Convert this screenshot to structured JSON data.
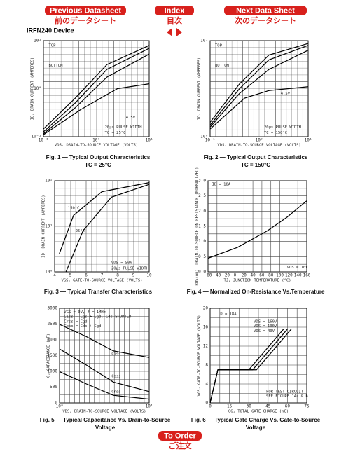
{
  "nav": {
    "prev": {
      "en": "Previous Datasheet",
      "ja": "前のデータシート"
    },
    "index": {
      "en": "Index",
      "ja": "目次"
    },
    "next": {
      "en": "Next Data Sheet",
      "ja": "次のデータシート"
    }
  },
  "device": "IRFN240 Device",
  "figures": [
    {
      "caption": [
        "Fig. 1 — Typical Output Characteristics",
        "TC = 25°C"
      ],
      "y_label": "ID, DRAIN CURRENT (AMPERES)",
      "x_label": "VDS, DRAIN-TO-SOURCE VOLTAGE (VOLTS)",
      "y_ticks": [
        "10¹",
        "10⁰",
        "10⁻¹"
      ],
      "x_ticks": [
        "10⁻¹",
        "10⁰",
        "10¹"
      ],
      "annotations": [
        "TOP",
        "BOTTOM",
        "4.5V",
        "20µs PULSE WIDTH",
        "TC = 25°C"
      ]
    },
    {
      "caption": [
        "Fig. 2 — Typical Output Characteristics",
        "TC = 150°C"
      ],
      "y_label": "ID, DRAIN CURRENT (AMPERES)",
      "x_label": "VDS, DRAIN-TO-SOURCE VOLTAGE (VOLTS)",
      "y_ticks": [
        "10¹",
        "10⁰"
      ],
      "x_ticks": [
        "10⁻¹",
        "10⁰",
        "10¹"
      ],
      "annotations": [
        "TOP",
        "BOTTOM",
        "4.5V",
        "20µs PULSE WIDTH",
        "TC = 150°C"
      ]
    },
    {
      "caption": [
        "Fig. 3 — Typical Transfer Characteristics"
      ],
      "y_label": "ID, DRAIN CURRENT (AMPERES)",
      "x_label": "VGS, GATE-TO-SOURCE VOLTAGE (VOLTS)",
      "y_ticks": [
        "10²",
        "10¹",
        "10⁰"
      ],
      "x_ticks": [
        4,
        5,
        6,
        7,
        8,
        9,
        10
      ],
      "annotations": [
        "150°C",
        "25°C",
        "VDS = 50V",
        "20µs PULSE WIDTH"
      ]
    },
    {
      "caption": [
        "Fig. 4 — Normalized On-Resistance Vs.Temperature"
      ],
      "y_label": "RDS(on), DRAIN-TO-SOURCE ON RESISTANCE (NORMALIZED)",
      "x_label": "TJ, JUNCTION TEMPERATURE (°C)",
      "y_ticks": [
        "3.0",
        "2.5",
        "2.0",
        "1.5",
        "1.0",
        "0.5",
        "0.0"
      ],
      "x_ticks": [
        -60,
        -40,
        -20,
        0,
        20,
        40,
        60,
        80,
        100,
        120,
        140,
        160
      ],
      "annotations": [
        "ID = 18A",
        "VGS = 10V"
      ]
    },
    {
      "caption": [
        "Fig. 5 — Typical Capacitance Vs. Drain-to-Source",
        "Voltage"
      ],
      "y_label": "C, CAPACITANCE (pF)",
      "x_label": "VDS, DRAIN-TO-SOURCE VOLTAGE (VOLTS)",
      "y_ticks": [
        3000,
        2500,
        2000,
        1500,
        1000,
        500,
        0
      ],
      "x_ticks": [
        "10⁰",
        "10¹"
      ],
      "annotations": [
        "VGS = 0V, f = 1MHz",
        "Ciss = Cgs + Cgd, Cds SHORTED",
        "Crss = Cgd",
        "Coss = Cds + Cgd",
        "Ciss",
        "Coss",
        "Crss"
      ]
    },
    {
      "caption": [
        "Fig. 6 — Typical Gate Charge Vs. Gate-to-Source",
        "Voltage"
      ],
      "y_label": "VGS, GATE-TO-SOURCE VOLTAGE (VOLTS)",
      "x_label": "QG, TOTAL GATE CHARGE (nC)",
      "y_ticks": [
        20,
        16,
        12,
        8,
        4,
        0
      ],
      "x_ticks": [
        0,
        15,
        30,
        45,
        60,
        75
      ],
      "annotations": [
        "ID = 18A",
        "VDS = 160V",
        "VDS = 100V",
        "VDS = 40V",
        "FOR TEST CIRCUIT",
        "SEE FIGURE 14a & b"
      ]
    }
  ],
  "order": {
    "en": "To Order",
    "ja": "ご注文"
  }
}
